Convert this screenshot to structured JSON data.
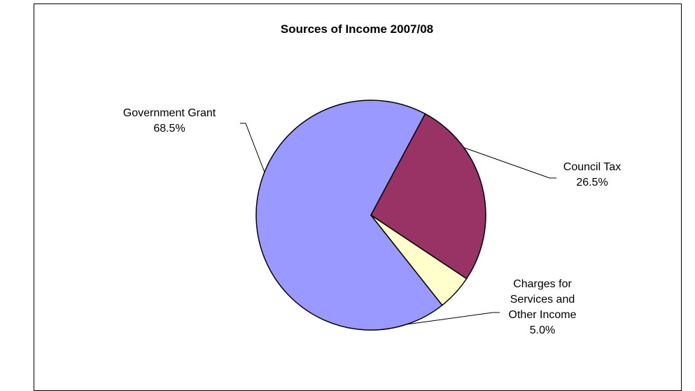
{
  "chart_data": {
    "type": "pie",
    "title": "Sources of Income 2007/08",
    "slices": [
      {
        "label_lines": [
          "Government Grant"
        ],
        "value": 68.5,
        "value_text": "68.5%",
        "color": "#9999ff"
      },
      {
        "label_lines": [
          "Council Tax"
        ],
        "value": 26.5,
        "value_text": "26.5%",
        "color": "#993366"
      },
      {
        "label_lines": [
          "Charges for",
          "Services and",
          "Other Income"
        ],
        "value": 5.0,
        "value_text": "5.0%",
        "color": "#ffffcc"
      }
    ],
    "legend": "none"
  }
}
